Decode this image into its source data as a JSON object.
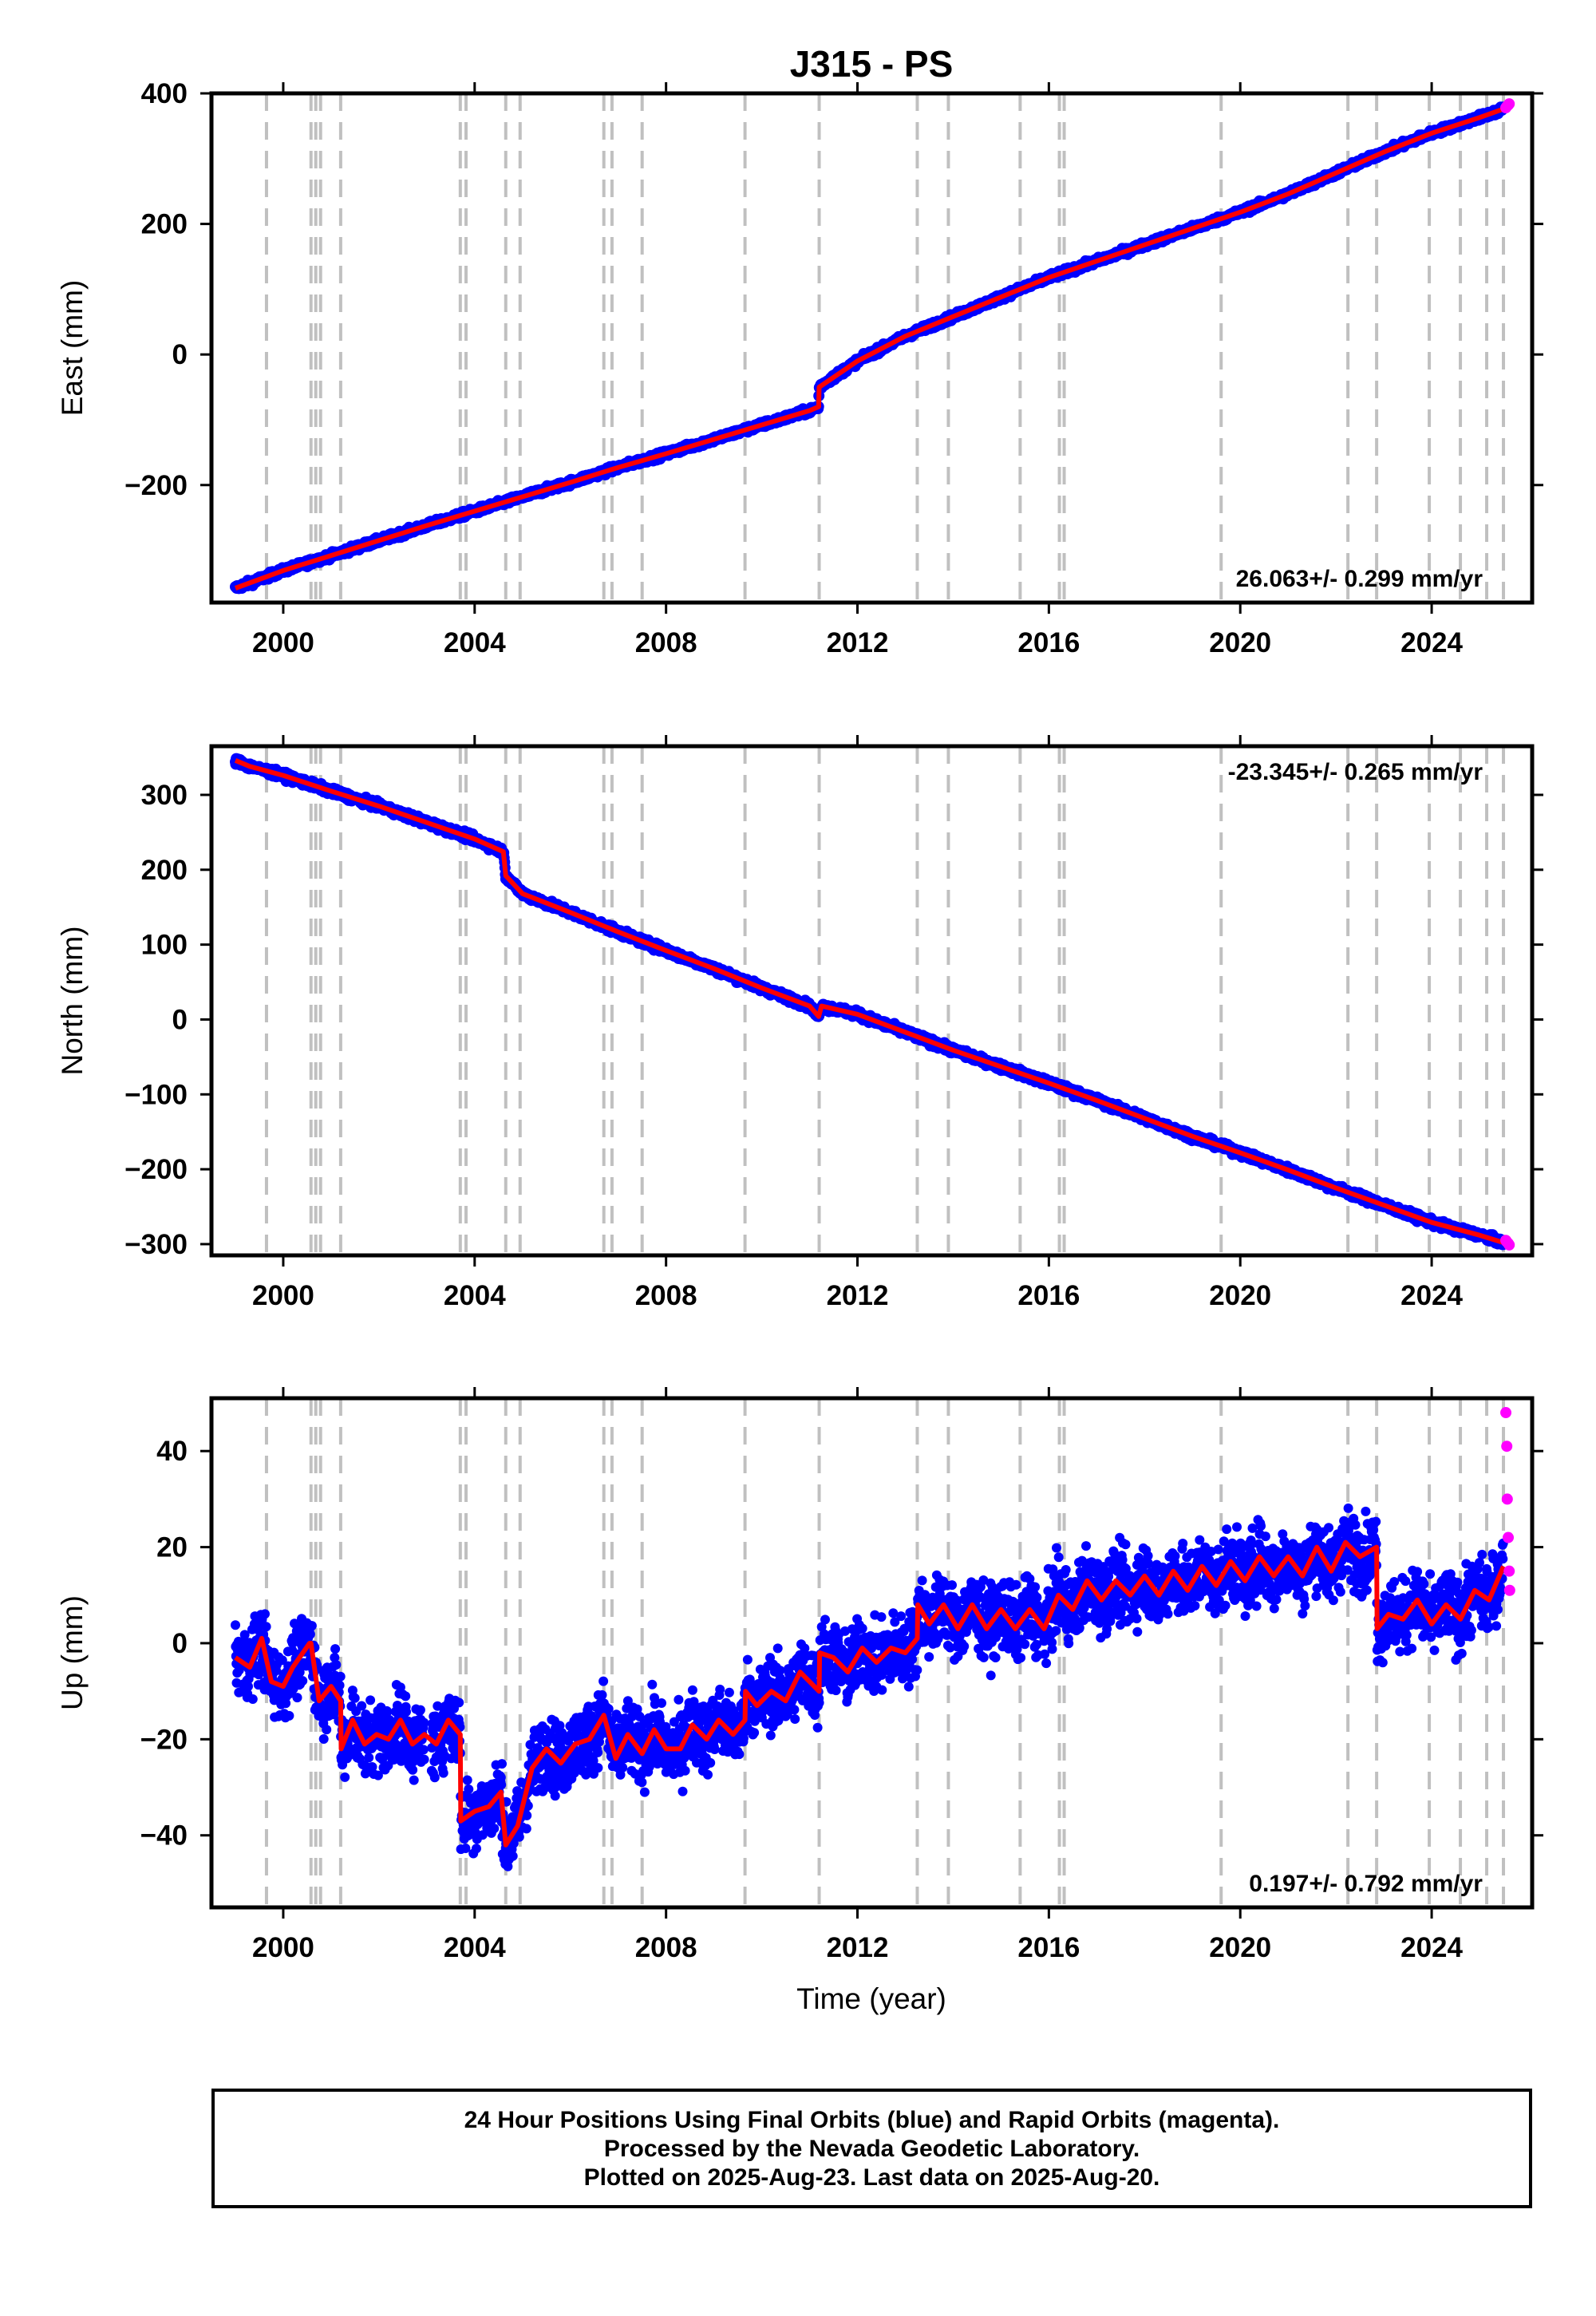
{
  "figure": {
    "title": "J315 - PS",
    "xlabel": "Time (year)",
    "footer": [
      "24 Hour Positions Using Final Orbits (blue) and Rapid Orbits (magenta).",
      "Processed by the Nevada Geodetic Laboratory.",
      "Plotted on 2025-Aug-23. Last data on 2025-Aug-20."
    ]
  },
  "chart_data": [
    {
      "type": "scatter",
      "ylabel": "East (mm)",
      "xlim": [
        1998.5,
        2026.1
      ],
      "ylim": [
        -380,
        400
      ],
      "yticks": [
        -200,
        0,
        200,
        400
      ],
      "xticks": [
        2000,
        2004,
        2008,
        2012,
        2016,
        2020,
        2024
      ],
      "rate_text": "26.063+/- 0.299 mm/yr",
      "rate_position": "bottom-right",
      "grid": false,
      "event_lines": [
        1999.65,
        2000.58,
        2000.68,
        2000.78,
        2001.2,
        2003.7,
        2003.82,
        2004.65,
        2004.95,
        2006.7,
        2006.87,
        2007.5,
        2009.65,
        2011.2,
        2013.25,
        2013.9,
        2015.4,
        2016.22,
        2016.32,
        2019.6,
        2022.25,
        2022.85,
        2023.95,
        2024.6,
        2025.15,
        2025.5
      ],
      "series": [
        {
          "name": "Final Orbits",
          "color": "#0000ff",
          "role": "daily-points",
          "x": [
            1999.0,
            2000.0,
            2001.0,
            2002.0,
            2003.0,
            2004.0,
            2005.0,
            2006.0,
            2007.0,
            2008.0,
            2009.0,
            2010.0,
            2011.0,
            2011.19,
            2011.2,
            2012.0,
            2013.0,
            2014.0,
            2015.0,
            2016.0,
            2017.0,
            2018.0,
            2019.0,
            2020.0,
            2021.0,
            2022.0,
            2023.0,
            2024.0,
            2025.0,
            2025.5
          ],
          "y": [
            -358,
            -331,
            -308,
            -285,
            -262,
            -240,
            -218,
            -196,
            -173,
            -152,
            -130,
            -108,
            -86,
            -80,
            -50,
            -10,
            28,
            58,
            88,
            118,
            143,
            168,
            193,
            218,
            246,
            278,
            310,
            339,
            363,
            376
          ]
        },
        {
          "name": "Model",
          "color": "#ff0000",
          "role": "model-line",
          "x": [
            1999.0,
            2000.0,
            2001.0,
            2002.0,
            2003.0,
            2004.0,
            2005.0,
            2006.0,
            2007.0,
            2008.0,
            2009.0,
            2010.0,
            2011.0,
            2011.19,
            2011.2,
            2012.0,
            2013.0,
            2014.0,
            2015.0,
            2016.0,
            2017.0,
            2018.0,
            2019.0,
            2020.0,
            2021.0,
            2022.0,
            2023.0,
            2024.0,
            2025.0,
            2025.5
          ],
          "y": [
            -358,
            -331,
            -308,
            -285,
            -262,
            -240,
            -218,
            -196,
            -173,
            -152,
            -130,
            -108,
            -86,
            -80,
            -50,
            -10,
            28,
            58,
            88,
            118,
            143,
            168,
            193,
            218,
            246,
            278,
            310,
            339,
            363,
            376
          ]
        },
        {
          "name": "Rapid Orbits",
          "color": "#ff00ff",
          "role": "rapid-points",
          "x": [
            2025.55,
            2025.57,
            2025.6,
            2025.62
          ],
          "y": [
            378,
            380,
            382,
            384
          ]
        }
      ]
    },
    {
      "type": "scatter",
      "ylabel": "North (mm)",
      "xlim": [
        1998.5,
        2026.1
      ],
      "ylim": [
        -315,
        365
      ],
      "yticks": [
        -300,
        -200,
        -100,
        0,
        100,
        200,
        300
      ],
      "xticks": [
        2000,
        2004,
        2008,
        2012,
        2016,
        2020,
        2024
      ],
      "rate_text": "-23.345+/- 0.265 mm/yr",
      "rate_position": "top-right",
      "grid": false,
      "event_lines": [
        1999.65,
        2000.58,
        2000.68,
        2000.78,
        2001.2,
        2003.7,
        2003.82,
        2004.65,
        2004.95,
        2006.7,
        2006.87,
        2007.5,
        2009.65,
        2011.2,
        2013.25,
        2013.9,
        2015.4,
        2016.22,
        2016.32,
        2019.6,
        2022.25,
        2022.85,
        2023.95,
        2024.6,
        2025.15,
        2025.5
      ],
      "series": [
        {
          "name": "Final Orbits",
          "color": "#0000ff",
          "role": "daily-points",
          "x": [
            1999.0,
            1999.3,
            2000.0,
            2001.0,
            2002.0,
            2003.0,
            2004.0,
            2004.6,
            2004.65,
            2005.0,
            2006.0,
            2007.0,
            2008.0,
            2009.0,
            2010.0,
            2011.0,
            2011.19,
            2011.25,
            2012.0,
            2013.0,
            2014.0,
            2015.0,
            2016.0,
            2017.0,
            2018.0,
            2019.0,
            2020.0,
            2021.0,
            2022.0,
            2023.0,
            2024.0,
            2025.0,
            2025.5
          ],
          "y": [
            346,
            338,
            326,
            305,
            285,
            263,
            241,
            224,
            192,
            168,
            143,
            117,
            92,
            68,
            42,
            18,
            4,
            18,
            7,
            -17,
            -41,
            -63,
            -85,
            -108,
            -132,
            -156,
            -178,
            -201,
            -225,
            -248,
            -271,
            -288,
            -298
          ]
        },
        {
          "name": "Model",
          "color": "#ff0000",
          "role": "model-line",
          "x": [
            1999.0,
            1999.3,
            2000.0,
            2001.0,
            2002.0,
            2003.0,
            2004.0,
            2004.6,
            2004.65,
            2005.0,
            2006.0,
            2007.0,
            2008.0,
            2009.0,
            2010.0,
            2011.0,
            2011.19,
            2011.25,
            2012.0,
            2013.0,
            2014.0,
            2015.0,
            2016.0,
            2017.0,
            2018.0,
            2019.0,
            2020.0,
            2021.0,
            2022.0,
            2023.0,
            2024.0,
            2025.0,
            2025.5
          ],
          "y": [
            346,
            338,
            326,
            305,
            285,
            263,
            241,
            224,
            192,
            168,
            143,
            117,
            92,
            68,
            42,
            18,
            4,
            18,
            7,
            -17,
            -41,
            -63,
            -85,
            -108,
            -132,
            -156,
            -178,
            -201,
            -225,
            -248,
            -271,
            -288,
            -298
          ]
        },
        {
          "name": "Rapid Orbits",
          "color": "#ff00ff",
          "role": "rapid-points",
          "x": [
            2025.55,
            2025.57,
            2025.6,
            2025.62
          ],
          "y": [
            -295,
            -297,
            -299,
            -301
          ]
        }
      ]
    },
    {
      "type": "scatter",
      "ylabel": "Up (mm)",
      "xlim": [
        1998.5,
        2026.1
      ],
      "ylim": [
        -55,
        51
      ],
      "yticks": [
        -40,
        -20,
        0,
        20,
        40
      ],
      "xticks": [
        2000,
        2004,
        2008,
        2012,
        2016,
        2020,
        2024
      ],
      "rate_text": "0.197+/- 0.792 mm/yr",
      "rate_position": "bottom-right",
      "grid": false,
      "event_lines": [
        1999.65,
        2000.58,
        2000.68,
        2000.78,
        2001.2,
        2003.7,
        2003.82,
        2004.65,
        2004.95,
        2006.7,
        2006.87,
        2007.5,
        2009.65,
        2011.2,
        2013.25,
        2013.9,
        2015.4,
        2016.22,
        2016.32,
        2019.6,
        2022.25,
        2022.85,
        2023.95,
        2024.6,
        2025.15,
        2025.5
      ],
      "series": [
        {
          "name": "Model",
          "color": "#ff0000",
          "role": "model-line",
          "x": [
            1999.0,
            1999.3,
            1999.55,
            1999.75,
            2000.0,
            2000.2,
            2000.55,
            2000.58,
            2000.75,
            2001.0,
            2001.2,
            2001.21,
            2001.45,
            2001.7,
            2001.95,
            2002.2,
            2002.45,
            2002.7,
            2002.95,
            2003.2,
            2003.45,
            2003.7,
            2003.71,
            2004.0,
            2004.3,
            2004.55,
            2004.65,
            2004.9,
            2005.2,
            2005.5,
            2005.8,
            2006.1,
            2006.4,
            2006.7,
            2006.95,
            2007.2,
            2007.5,
            2007.75,
            2008.0,
            2008.3,
            2008.55,
            2008.85,
            2009.1,
            2009.4,
            2009.65,
            2009.66,
            2009.9,
            2010.2,
            2010.5,
            2010.8,
            2011.2,
            2011.21,
            2011.5,
            2011.8,
            2012.1,
            2012.4,
            2012.7,
            2013.0,
            2013.25,
            2013.26,
            2013.5,
            2013.8,
            2014.1,
            2014.4,
            2014.7,
            2015.0,
            2015.3,
            2015.6,
            2015.9,
            2016.2,
            2016.5,
            2016.8,
            2017.1,
            2017.4,
            2017.7,
            2018.0,
            2018.3,
            2018.6,
            2018.9,
            2019.2,
            2019.5,
            2019.8,
            2020.1,
            2020.4,
            2020.7,
            2021.0,
            2021.3,
            2021.6,
            2021.9,
            2022.2,
            2022.5,
            2022.85,
            2022.86,
            2023.1,
            2023.4,
            2023.7,
            2024.0,
            2024.3,
            2024.6,
            2024.9,
            2025.2,
            2025.5
          ],
          "y": [
            -3,
            -5,
            1,
            -8,
            -9,
            -5,
            0,
            0,
            -12,
            -9,
            -12,
            -22,
            -16,
            -21,
            -19,
            -20,
            -16,
            -21,
            -19,
            -21,
            -16,
            -19,
            -37,
            -35,
            -34,
            -31,
            -42,
            -38,
            -26,
            -22,
            -25,
            -21,
            -20,
            -15,
            -24,
            -19,
            -23,
            -18,
            -22,
            -22,
            -17,
            -20,
            -16,
            -19,
            -16,
            -10,
            -13,
            -10,
            -12,
            -6,
            -10,
            -2,
            -3,
            -6,
            -1,
            -4,
            -1,
            -2,
            1,
            8,
            4,
            8,
            3,
            8,
            3,
            7,
            3,
            7,
            3,
            10,
            7,
            13,
            9,
            13,
            10,
            14,
            10,
            15,
            11,
            16,
            12,
            17,
            13,
            18,
            14,
            18,
            14,
            20,
            15,
            21,
            18,
            20,
            3,
            6,
            5,
            9,
            4,
            8,
            5,
            11,
            9,
            16
          ]
        },
        {
          "name": "Rapid Orbits",
          "color": "#ff00ff",
          "role": "rapid-points",
          "x": [
            2025.55,
            2025.57,
            2025.58,
            2025.6,
            2025.62,
            2025.63
          ],
          "y": [
            48,
            41,
            30,
            22,
            15,
            11
          ]
        }
      ]
    }
  ]
}
